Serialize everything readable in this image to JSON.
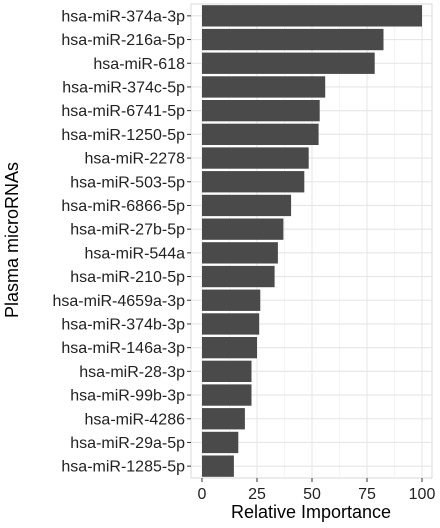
{
  "chart_data": {
    "type": "bar",
    "orientation": "horizontal",
    "title": "",
    "xlabel": "Relative Importance",
    "ylabel": "Plasma microRNAs",
    "xlim": [
      0,
      100
    ],
    "xticks": [
      0,
      25,
      50,
      75,
      100
    ],
    "grid": true,
    "legend": "none",
    "bar_color": "#4a4a4a",
    "grid_color": "#e6e6e6",
    "categories": [
      "hsa-miR-374a-3p",
      "hsa-miR-216a-5p",
      "hsa-miR-618",
      "hsa-miR-374c-5p",
      "hsa-miR-6741-5p",
      "hsa-miR-1250-5p",
      "hsa-miR-2278",
      "hsa-miR-503-5p",
      "hsa-miR-6866-5p",
      "hsa-miR-27b-5p",
      "hsa-miR-544a",
      "hsa-miR-210-5p",
      "hsa-miR-4659a-3p",
      "hsa-miR-374b-3p",
      "hsa-miR-146a-3p",
      "hsa-miR-28-3p",
      "hsa-miR-99b-3p",
      "hsa-miR-4286",
      "hsa-miR-29a-5p",
      "hsa-miR-1285-5p"
    ],
    "values": [
      100,
      82.5,
      78.5,
      56,
      53.5,
      53,
      48.5,
      46.5,
      40.5,
      37,
      34.5,
      33,
      26.5,
      26,
      25,
      22.5,
      22.5,
      19.5,
      16.5,
      14.5
    ]
  }
}
